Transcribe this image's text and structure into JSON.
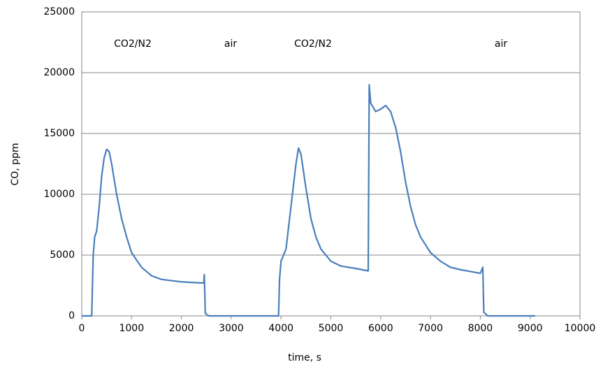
{
  "chart_data": {
    "type": "line",
    "x_label": "time, s",
    "y_label": "CO, ppm",
    "annotations": [
      "CO2/N2",
      "air",
      "CO2/N2",
      "air"
    ],
    "x": [
      0,
      200,
      230,
      260,
      300,
      350,
      400,
      450,
      500,
      550,
      600,
      700,
      800,
      900,
      1000,
      1200,
      1400,
      1600,
      1800,
      2000,
      2200,
      2450,
      2460,
      2480,
      2550,
      3000,
      3950,
      3970,
      4000,
      4100,
      4200,
      4300,
      4350,
      4400,
      4500,
      4600,
      4700,
      4800,
      5000,
      5200,
      5500,
      5750,
      5770,
      5800,
      5900,
      6000,
      6100,
      6200,
      6300,
      6400,
      6500,
      6600,
      6700,
      6800,
      7000,
      7200,
      7400,
      7600,
      8000,
      8050,
      8070,
      8150,
      9100
    ],
    "series": [
      {
        "name": "CO",
        "color": "#4a7ebb",
        "values": [
          0,
          0,
          5000,
          6500,
          7000,
          9000,
          11500,
          13000,
          13700,
          13500,
          12500,
          10000,
          8000,
          6500,
          5200,
          4000,
          3300,
          3000,
          2900,
          2800,
          2750,
          2700,
          3400,
          200,
          0,
          0,
          0,
          3000,
          4500,
          5500,
          9000,
          12500,
          13800,
          13300,
          10500,
          8000,
          6500,
          5500,
          4500,
          4100,
          3900,
          3700,
          19000,
          17500,
          16800,
          17000,
          17300,
          16800,
          15500,
          13500,
          11000,
          9000,
          7500,
          6500,
          5200,
          4500,
          4000,
          3800,
          3500,
          4000,
          300,
          0,
          0
        ]
      }
    ],
    "xlim": [
      0,
      10000
    ],
    "xticks": [
      0,
      1000,
      2000,
      3000,
      4000,
      5000,
      6000,
      7000,
      8000,
      9000,
      10000
    ],
    "ylim": [
      0,
      25000
    ],
    "yticks": [
      0,
      5000,
      10000,
      15000,
      20000,
      25000
    ],
    "grid": true
  }
}
